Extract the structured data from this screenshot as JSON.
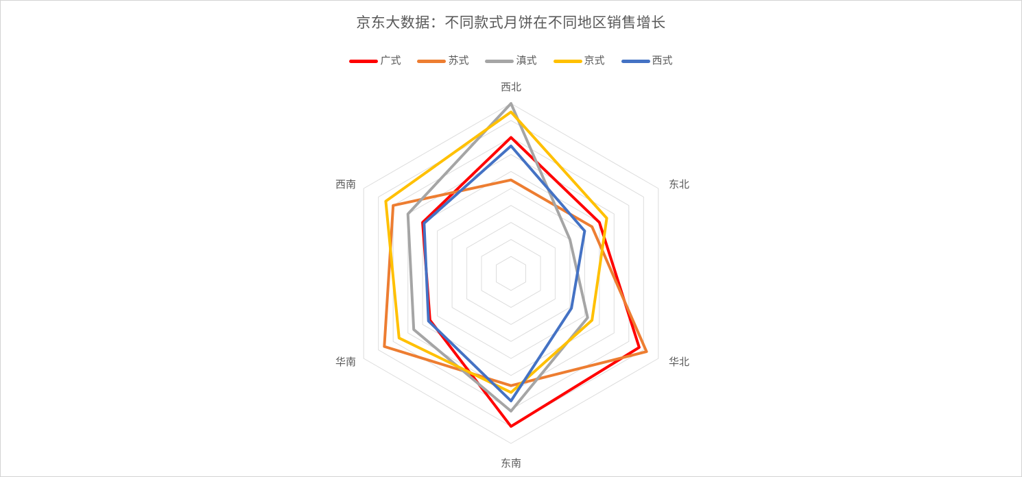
{
  "title": "京东大数据：不同款式月饼在不同地区销售增长",
  "chart_data": {
    "type": "radar",
    "categories": [
      "西北",
      "东北",
      "华北",
      "东南",
      "华南",
      "西南"
    ],
    "axis_range": [
      0,
      100
    ],
    "rings": 10,
    "grid": true,
    "legend_position": "top",
    "series": [
      {
        "name": "广式",
        "color": "#FF0000",
        "values": [
          80,
          60,
          87,
          90,
          55,
          60
        ]
      },
      {
        "name": "苏式",
        "color": "#ED7D31",
        "values": [
          55,
          55,
          92,
          66,
          86,
          80
        ]
      },
      {
        "name": "滇式",
        "color": "#A5A5A5",
        "values": [
          100,
          40,
          52,
          81,
          66,
          70
        ]
      },
      {
        "name": "京式",
        "color": "#FFC000",
        "values": [
          95,
          65,
          55,
          70,
          76,
          85
        ]
      },
      {
        "name": "西式",
        "color": "#4472C4",
        "values": [
          75,
          50,
          41,
          75,
          56,
          59
        ]
      }
    ]
  },
  "style": {
    "grid_color": "#DCDCDC",
    "text_color": "#595959",
    "background": "#FFFFFF",
    "border_color": "#D3D3D3"
  }
}
